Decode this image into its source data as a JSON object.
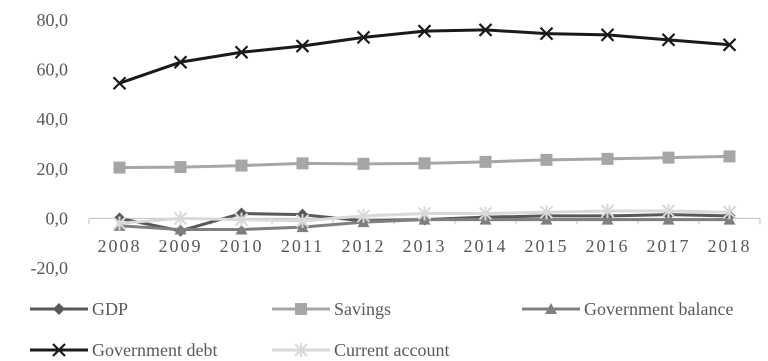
{
  "chart_data": {
    "type": "line",
    "title": "",
    "xlabel": "",
    "ylabel": "",
    "x": [
      "2008",
      "2009",
      "2010",
      "2011",
      "2012",
      "2013",
      "2014",
      "2015",
      "2016",
      "2017",
      "2018"
    ],
    "ylim": [
      -20,
      80
    ],
    "yticks": [
      "-20,0",
      "0,0",
      "20,0",
      "40,0",
      "60,0",
      "80,0"
    ],
    "ytick_values": [
      -20,
      0,
      20,
      40,
      60,
      80
    ],
    "grid": false,
    "legend_position": "bottom",
    "series": [
      {
        "name": "GDP",
        "color": "#595959",
        "marker": "diamond",
        "values": [
          0.0,
          -5.0,
          2.0,
          1.5,
          -1.0,
          -0.5,
          0.5,
          1.0,
          1.0,
          1.5,
          1.0
        ]
      },
      {
        "name": "Savings",
        "color": "#a6a6a6",
        "marker": "square",
        "values": [
          20.5,
          20.7,
          21.3,
          22.2,
          22.0,
          22.2,
          22.8,
          23.6,
          24.0,
          24.5,
          25.0
        ]
      },
      {
        "name": "Government balance",
        "color": "#7f7f7f",
        "marker": "triangle",
        "values": [
          -3.0,
          -4.5,
          -4.5,
          -3.5,
          -1.5,
          -0.5,
          -0.5,
          -0.5,
          -0.5,
          -0.5,
          -0.5
        ]
      },
      {
        "name": "Government debt",
        "color": "#1a1a1a",
        "marker": "x",
        "values": [
          54.5,
          63.0,
          67.0,
          69.5,
          73.0,
          75.5,
          76.0,
          74.5,
          74.0,
          72.0,
          70.0
        ]
      },
      {
        "name": "Current account",
        "color": "#d9d9d9",
        "marker": "asterisk",
        "values": [
          -2.0,
          0.0,
          -0.5,
          -1.0,
          1.0,
          2.0,
          2.0,
          2.5,
          3.0,
          3.0,
          2.5
        ]
      }
    ]
  }
}
